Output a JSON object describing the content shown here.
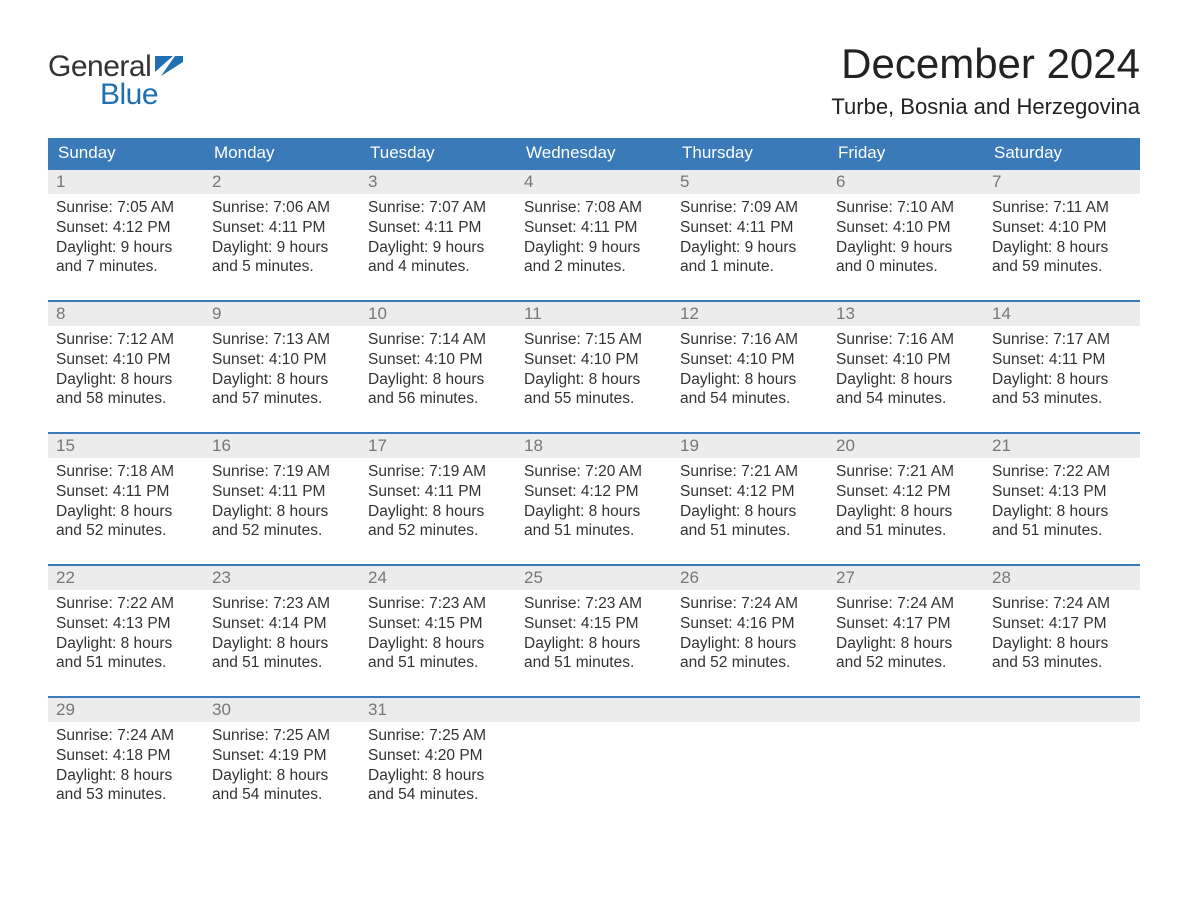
{
  "logo": {
    "word1": "General",
    "word2": "Blue",
    "flag_color": "#1f6fb2"
  },
  "title": "December 2024",
  "location": "Turbe, Bosnia and Herzegovina",
  "colors": {
    "header_bg": "#3a7ab8",
    "header_text": "#ffffff",
    "daynum_bg": "#ececec",
    "daynum_text": "#777777",
    "body_text": "#333333",
    "rule": "#3a7ab8",
    "logo_blue": "#1f6fb2"
  },
  "weekday_labels": [
    "Sunday",
    "Monday",
    "Tuesday",
    "Wednesday",
    "Thursday",
    "Friday",
    "Saturday"
  ],
  "weeks": [
    [
      {
        "n": "1",
        "sr": "Sunrise: 7:05 AM",
        "ss": "Sunset: 4:12 PM",
        "d1": "Daylight: 9 hours",
        "d2": "and 7 minutes."
      },
      {
        "n": "2",
        "sr": "Sunrise: 7:06 AM",
        "ss": "Sunset: 4:11 PM",
        "d1": "Daylight: 9 hours",
        "d2": "and 5 minutes."
      },
      {
        "n": "3",
        "sr": "Sunrise: 7:07 AM",
        "ss": "Sunset: 4:11 PM",
        "d1": "Daylight: 9 hours",
        "d2": "and 4 minutes."
      },
      {
        "n": "4",
        "sr": "Sunrise: 7:08 AM",
        "ss": "Sunset: 4:11 PM",
        "d1": "Daylight: 9 hours",
        "d2": "and 2 minutes."
      },
      {
        "n": "5",
        "sr": "Sunrise: 7:09 AM",
        "ss": "Sunset: 4:11 PM",
        "d1": "Daylight: 9 hours",
        "d2": "and 1 minute."
      },
      {
        "n": "6",
        "sr": "Sunrise: 7:10 AM",
        "ss": "Sunset: 4:10 PM",
        "d1": "Daylight: 9 hours",
        "d2": "and 0 minutes."
      },
      {
        "n": "7",
        "sr": "Sunrise: 7:11 AM",
        "ss": "Sunset: 4:10 PM",
        "d1": "Daylight: 8 hours",
        "d2": "and 59 minutes."
      }
    ],
    [
      {
        "n": "8",
        "sr": "Sunrise: 7:12 AM",
        "ss": "Sunset: 4:10 PM",
        "d1": "Daylight: 8 hours",
        "d2": "and 58 minutes."
      },
      {
        "n": "9",
        "sr": "Sunrise: 7:13 AM",
        "ss": "Sunset: 4:10 PM",
        "d1": "Daylight: 8 hours",
        "d2": "and 57 minutes."
      },
      {
        "n": "10",
        "sr": "Sunrise: 7:14 AM",
        "ss": "Sunset: 4:10 PM",
        "d1": "Daylight: 8 hours",
        "d2": "and 56 minutes."
      },
      {
        "n": "11",
        "sr": "Sunrise: 7:15 AM",
        "ss": "Sunset: 4:10 PM",
        "d1": "Daylight: 8 hours",
        "d2": "and 55 minutes."
      },
      {
        "n": "12",
        "sr": "Sunrise: 7:16 AM",
        "ss": "Sunset: 4:10 PM",
        "d1": "Daylight: 8 hours",
        "d2": "and 54 minutes."
      },
      {
        "n": "13",
        "sr": "Sunrise: 7:16 AM",
        "ss": "Sunset: 4:10 PM",
        "d1": "Daylight: 8 hours",
        "d2": "and 54 minutes."
      },
      {
        "n": "14",
        "sr": "Sunrise: 7:17 AM",
        "ss": "Sunset: 4:11 PM",
        "d1": "Daylight: 8 hours",
        "d2": "and 53 minutes."
      }
    ],
    [
      {
        "n": "15",
        "sr": "Sunrise: 7:18 AM",
        "ss": "Sunset: 4:11 PM",
        "d1": "Daylight: 8 hours",
        "d2": "and 52 minutes."
      },
      {
        "n": "16",
        "sr": "Sunrise: 7:19 AM",
        "ss": "Sunset: 4:11 PM",
        "d1": "Daylight: 8 hours",
        "d2": "and 52 minutes."
      },
      {
        "n": "17",
        "sr": "Sunrise: 7:19 AM",
        "ss": "Sunset: 4:11 PM",
        "d1": "Daylight: 8 hours",
        "d2": "and 52 minutes."
      },
      {
        "n": "18",
        "sr": "Sunrise: 7:20 AM",
        "ss": "Sunset: 4:12 PM",
        "d1": "Daylight: 8 hours",
        "d2": "and 51 minutes."
      },
      {
        "n": "19",
        "sr": "Sunrise: 7:21 AM",
        "ss": "Sunset: 4:12 PM",
        "d1": "Daylight: 8 hours",
        "d2": "and 51 minutes."
      },
      {
        "n": "20",
        "sr": "Sunrise: 7:21 AM",
        "ss": "Sunset: 4:12 PM",
        "d1": "Daylight: 8 hours",
        "d2": "and 51 minutes."
      },
      {
        "n": "21",
        "sr": "Sunrise: 7:22 AM",
        "ss": "Sunset: 4:13 PM",
        "d1": "Daylight: 8 hours",
        "d2": "and 51 minutes."
      }
    ],
    [
      {
        "n": "22",
        "sr": "Sunrise: 7:22 AM",
        "ss": "Sunset: 4:13 PM",
        "d1": "Daylight: 8 hours",
        "d2": "and 51 minutes."
      },
      {
        "n": "23",
        "sr": "Sunrise: 7:23 AM",
        "ss": "Sunset: 4:14 PM",
        "d1": "Daylight: 8 hours",
        "d2": "and 51 minutes."
      },
      {
        "n": "24",
        "sr": "Sunrise: 7:23 AM",
        "ss": "Sunset: 4:15 PM",
        "d1": "Daylight: 8 hours",
        "d2": "and 51 minutes."
      },
      {
        "n": "25",
        "sr": "Sunrise: 7:23 AM",
        "ss": "Sunset: 4:15 PM",
        "d1": "Daylight: 8 hours",
        "d2": "and 51 minutes."
      },
      {
        "n": "26",
        "sr": "Sunrise: 7:24 AM",
        "ss": "Sunset: 4:16 PM",
        "d1": "Daylight: 8 hours",
        "d2": "and 52 minutes."
      },
      {
        "n": "27",
        "sr": "Sunrise: 7:24 AM",
        "ss": "Sunset: 4:17 PM",
        "d1": "Daylight: 8 hours",
        "d2": "and 52 minutes."
      },
      {
        "n": "28",
        "sr": "Sunrise: 7:24 AM",
        "ss": "Sunset: 4:17 PM",
        "d1": "Daylight: 8 hours",
        "d2": "and 53 minutes."
      }
    ],
    [
      {
        "n": "29",
        "sr": "Sunrise: 7:24 AM",
        "ss": "Sunset: 4:18 PM",
        "d1": "Daylight: 8 hours",
        "d2": "and 53 minutes."
      },
      {
        "n": "30",
        "sr": "Sunrise: 7:25 AM",
        "ss": "Sunset: 4:19 PM",
        "d1": "Daylight: 8 hours",
        "d2": "and 54 minutes."
      },
      {
        "n": "31",
        "sr": "Sunrise: 7:25 AM",
        "ss": "Sunset: 4:20 PM",
        "d1": "Daylight: 8 hours",
        "d2": "and 54 minutes."
      },
      {
        "empty": true
      },
      {
        "empty": true
      },
      {
        "empty": true
      },
      {
        "empty": true
      }
    ]
  ]
}
